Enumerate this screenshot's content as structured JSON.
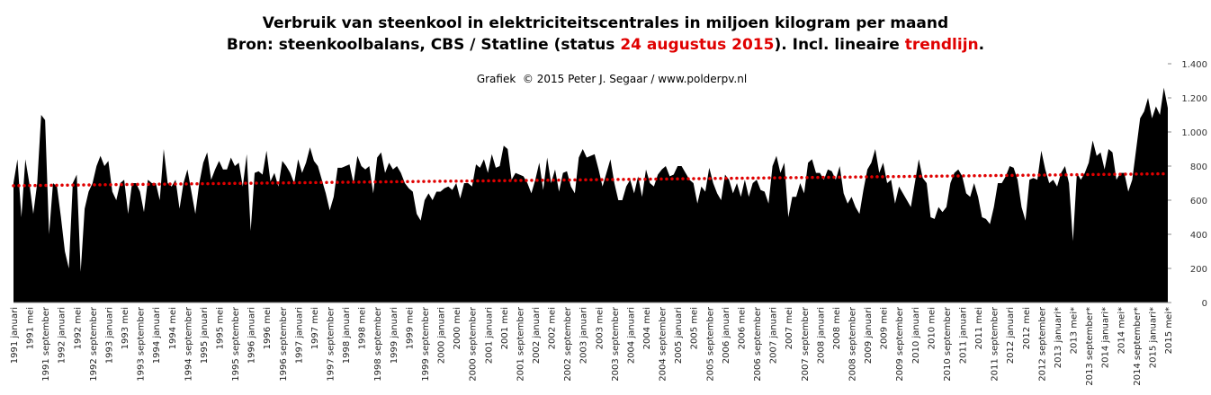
{
  "chart_data": {
    "type": "area",
    "title": "Verbruik van steenkool in elektriciteitscentrales in miljoen kilogram per maand",
    "subtitle": [
      {
        "text": "Bron: steenkoolbalans, CBS / Statline (status ",
        "color": "#000000"
      },
      {
        "text": "24 augustus 2015",
        "color": "#e00000"
      },
      {
        "text": "). Incl. lineaire ",
        "color": "#000000"
      },
      {
        "text": "trendlijn",
        "color": "#e00000"
      },
      {
        "text": ".",
        "color": "#000000"
      }
    ],
    "credit": "Grafiek  © 2015 Peter J. Segaar / www.polderpv.nl",
    "categories": [
      "1991 januari",
      null,
      null,
      null,
      "1991 mei",
      null,
      null,
      null,
      "1991 september",
      null,
      null,
      null,
      "1992 januari",
      null,
      null,
      null,
      "1992 mei",
      null,
      null,
      null,
      "1992 september",
      null,
      null,
      null,
      "1993 januari",
      null,
      null,
      null,
      "1993 mei",
      null,
      null,
      null,
      "1993 september",
      null,
      null,
      null,
      "1994 januari",
      null,
      null,
      null,
      "1994 mei",
      null,
      null,
      null,
      "1994 september",
      null,
      null,
      null,
      "1995 januari",
      null,
      null,
      null,
      "1995 mei",
      null,
      null,
      null,
      "1995 september",
      null,
      null,
      null,
      "1996 januari",
      null,
      null,
      null,
      "1996 mei",
      null,
      null,
      null,
      "1996 september",
      null,
      null,
      null,
      "1997 januari",
      null,
      null,
      null,
      "1997 mei",
      null,
      null,
      null,
      "1997 september",
      null,
      null,
      null,
      "1998 januari",
      null,
      null,
      null,
      "1998 mei",
      null,
      null,
      null,
      "1998 september",
      null,
      null,
      null,
      "1999 januari",
      null,
      null,
      null,
      "1999 mei",
      null,
      null,
      null,
      "1999 september",
      null,
      null,
      null,
      "2000 januari",
      null,
      null,
      null,
      "2000 mei",
      null,
      null,
      null,
      "2000 september",
      null,
      null,
      null,
      "2001 januari",
      null,
      null,
      null,
      "2001 mei",
      null,
      null,
      null,
      "2001 september",
      null,
      null,
      null,
      "2002 januari",
      null,
      null,
      null,
      "2002 mei",
      null,
      null,
      null,
      "2002 september",
      null,
      null,
      null,
      "2003 januari",
      null,
      null,
      null,
      "2003 mei",
      null,
      null,
      null,
      "2003 september",
      null,
      null,
      null,
      "2004 januari",
      null,
      null,
      null,
      "2004 mei",
      null,
      null,
      null,
      "2004 september",
      null,
      null,
      null,
      "2005 januari",
      null,
      null,
      null,
      "2005 mei",
      null,
      null,
      null,
      "2005 september",
      null,
      null,
      null,
      "2006 januari",
      null,
      null,
      null,
      "2006 mei",
      null,
      null,
      null,
      "2006 september",
      null,
      null,
      null,
      "2007 januari",
      null,
      null,
      null,
      "2007 mei",
      null,
      null,
      null,
      "2007 september",
      null,
      null,
      null,
      "2008 januari",
      null,
      null,
      null,
      "2008 mei",
      null,
      null,
      null,
      "2008 september",
      null,
      null,
      null,
      "2009 januari",
      null,
      null,
      null,
      "2009 mei",
      null,
      null,
      null,
      "2009 september",
      null,
      null,
      null,
      "2010 januari",
      null,
      null,
      null,
      "2010 mei",
      null,
      null,
      null,
      "2010 september",
      null,
      null,
      null,
      "2011 januari",
      null,
      null,
      null,
      "2011 mei",
      null,
      null,
      null,
      "2011 september",
      null,
      null,
      null,
      "2012 januari",
      null,
      null,
      null,
      "2012 mei",
      null,
      null,
      null,
      "2012 september",
      null,
      null,
      null,
      "2013 januari*",
      null,
      null,
      null,
      "2013 mei*",
      null,
      null,
      null,
      "2013 september*",
      null,
      null,
      null,
      "2014 januari*",
      null,
      null,
      null,
      "2014 mei*",
      null,
      null,
      null,
      "2014 september*",
      null,
      null,
      null,
      "2015 januari*",
      null,
      null,
      null,
      "2015 mei*"
    ],
    "series": [
      {
        "color": "#000000",
        "values": [
          700,
          840,
          500,
          840,
          700,
          520,
          700,
          1100,
          1070,
          400,
          700,
          680,
          500,
          300,
          200,
          700,
          750,
          180,
          550,
          650,
          700,
          800,
          860,
          800,
          830,
          650,
          600,
          700,
          720,
          520,
          700,
          700,
          650,
          530,
          720,
          700,
          700,
          600,
          900,
          700,
          680,
          720,
          550,
          700,
          780,
          650,
          520,
          700,
          820,
          880,
          720,
          780,
          830,
          780,
          780,
          850,
          800,
          820,
          680,
          870,
          420,
          760,
          770,
          750,
          890,
          710,
          760,
          680,
          830,
          800,
          760,
          700,
          840,
          760,
          820,
          910,
          830,
          800,
          720,
          640,
          540,
          620,
          790,
          790,
          800,
          810,
          700,
          860,
          800,
          780,
          800,
          640,
          850,
          880,
          760,
          820,
          780,
          800,
          760,
          700,
          670,
          650,
          520,
          480,
          600,
          640,
          600,
          650,
          650,
          670,
          680,
          660,
          700,
          610,
          700,
          700,
          680,
          810,
          790,
          840,
          760,
          870,
          790,
          800,
          920,
          900,
          720,
          760,
          750,
          740,
          700,
          640,
          720,
          820,
          660,
          850,
          700,
          780,
          650,
          760,
          770,
          680,
          640,
          850,
          900,
          850,
          860,
          870,
          780,
          680,
          760,
          840,
          700,
          600,
          600,
          680,
          720,
          640,
          740,
          620,
          780,
          700,
          680,
          750,
          780,
          800,
          740,
          750,
          800,
          800,
          760,
          720,
          700,
          580,
          680,
          650,
          790,
          700,
          640,
          600,
          750,
          720,
          640,
          700,
          620,
          720,
          620,
          700,
          720,
          660,
          650,
          580,
          800,
          860,
          760,
          820,
          500,
          620,
          620,
          700,
          640,
          820,
          840,
          760,
          760,
          720,
          780,
          770,
          720,
          800,
          640,
          580,
          620,
          560,
          520,
          660,
          780,
          820,
          900,
          760,
          820,
          700,
          720,
          580,
          680,
          640,
          600,
          560,
          700,
          840,
          730,
          700,
          500,
          490,
          560,
          530,
          560,
          700,
          760,
          780,
          740,
          640,
          620,
          700,
          620,
          500,
          490,
          460,
          560,
          700,
          700,
          740,
          800,
          790,
          720,
          560,
          480,
          720,
          730,
          720,
          890,
          780,
          700,
          720,
          680,
          760,
          800,
          700,
          360,
          760,
          720,
          760,
          820,
          950,
          860,
          880,
          780,
          900,
          880,
          720,
          760,
          760,
          650,
          720,
          900,
          1080,
          1120,
          1200,
          1080,
          1150,
          1100,
          1260,
          1140
        ]
      }
    ],
    "trend": {
      "color": "#e00000",
      "values": [
        685,
        755
      ]
    },
    "ylim": [
      0,
      1400
    ],
    "yticks": [
      0,
      200,
      400,
      600,
      800,
      {
        "value": 1000,
        "label": "1.000"
      },
      {
        "value": 1200,
        "label": "1.200"
      },
      {
        "value": 1400,
        "label": "1.400"
      }
    ]
  }
}
